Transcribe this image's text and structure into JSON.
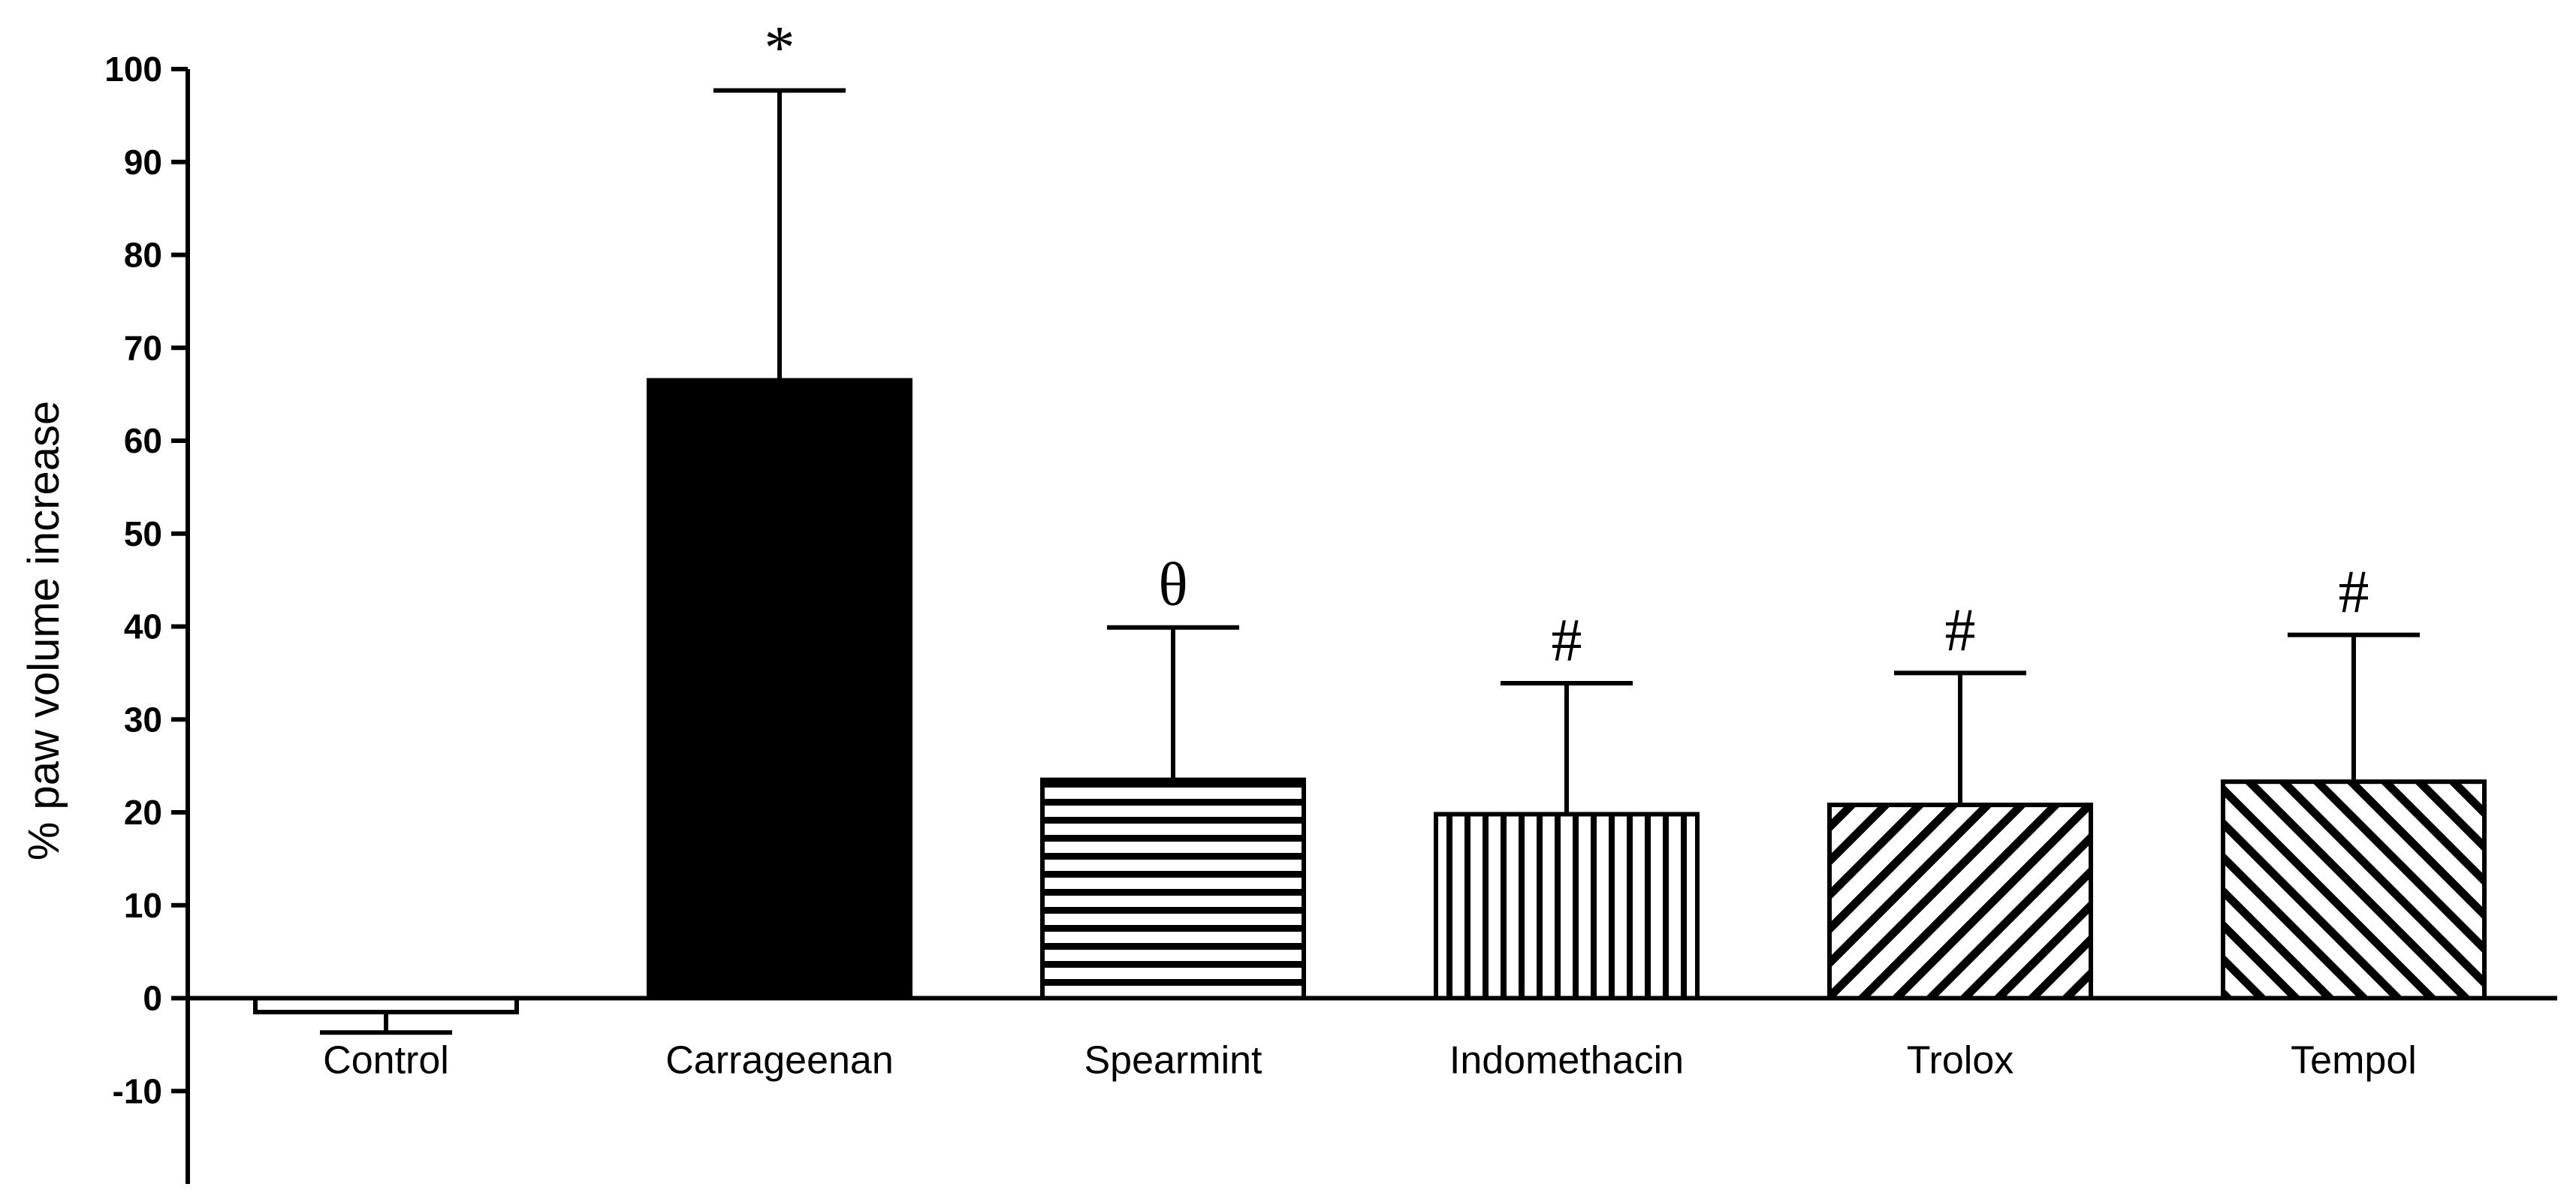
{
  "chart_data": {
    "type": "bar",
    "title": "",
    "xlabel": "",
    "ylabel": "% paw volume increase",
    "ylim": [
      -20,
      100
    ],
    "yticks": [
      -10,
      0,
      10,
      20,
      30,
      40,
      50,
      60,
      70,
      80,
      90,
      100
    ],
    "grid": false,
    "legend": "none",
    "categories": [
      "Control",
      "Carrageenan",
      "Spearmint",
      "Indomethacin",
      "Trolox",
      "Tempol"
    ],
    "values": [
      -1.5,
      66.5,
      23.5,
      19.8,
      20.8,
      23.3
    ],
    "error_bars": [
      2.2,
      31.2,
      16.4,
      14.1,
      14.2,
      15.8
    ],
    "significance": [
      "",
      "*",
      "θ",
      "#",
      "#",
      "#"
    ],
    "fill_patterns": [
      "white",
      "solid-black",
      "horizontal-lines",
      "vertical-lines",
      "diagonal-up",
      "diagonal-down"
    ],
    "colors": {
      "bar_stroke": "#000000",
      "solid": "#000000",
      "background": "#ffffff"
    }
  }
}
